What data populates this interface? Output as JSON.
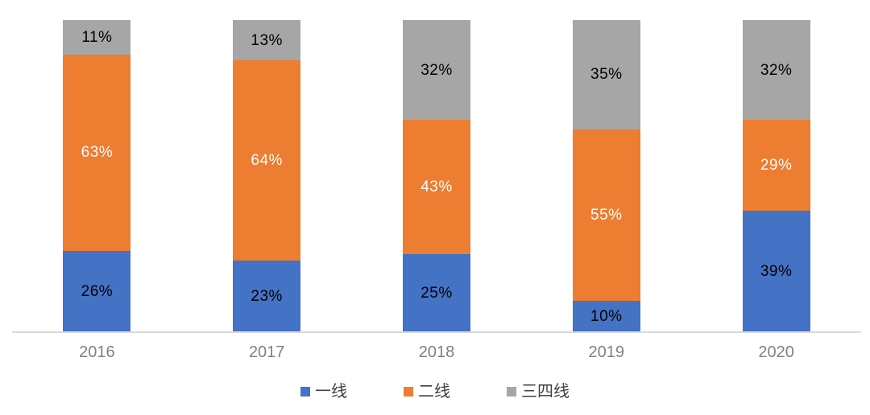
{
  "chart_data": {
    "type": "bar",
    "stacked": true,
    "title": "",
    "xlabel": "",
    "ylabel": "",
    "ylim": [
      0,
      100
    ],
    "grid": false,
    "legend_position": "bottom",
    "value_suffix": "%",
    "categories": [
      "2016",
      "2017",
      "2018",
      "2019",
      "2020"
    ],
    "series": [
      {
        "name": "一线",
        "color": "#4472C4",
        "label_color": "#000000",
        "values": [
          26,
          23,
          25,
          10,
          39
        ]
      },
      {
        "name": "二线",
        "color": "#ED7D31",
        "label_color": "#FFFFFF",
        "values": [
          63,
          64,
          43,
          55,
          29
        ]
      },
      {
        "name": "三四线",
        "color": "#A6A6A6",
        "label_color": "#000000",
        "values": [
          11,
          13,
          32,
          35,
          32
        ]
      }
    ],
    "colors": {
      "background": "#FFFFFF",
      "axis_line": "#D9D9D9",
      "tick_label": "#808080",
      "legend_text": "#404040"
    }
  }
}
